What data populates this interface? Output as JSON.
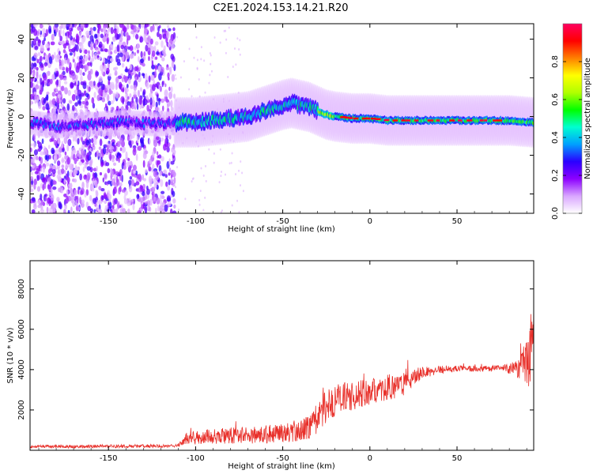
{
  "title": "C2E1.2024.153.14.21.R20",
  "chart_data": [
    {
      "type": "heatmap",
      "xlabel": "Height of straight line (km)",
      "ylabel": "Frequency (Hz)",
      "xlim": [
        -195,
        94
      ],
      "ylim": [
        -50,
        48
      ],
      "xticks": [
        -150,
        -100,
        -50,
        0,
        50
      ],
      "yticks": [
        -40,
        -20,
        0,
        20,
        40
      ],
      "ridge": {
        "x": [
          -195,
          -180,
          -160,
          -140,
          -120,
          -110,
          -100,
          -90,
          -80,
          -70,
          -60,
          -50,
          -45,
          -40,
          -35,
          -30,
          -25,
          -20,
          -10,
          0,
          10,
          20,
          40,
          60,
          80,
          94
        ],
        "y": [
          -3,
          -5,
          -4,
          -3,
          -4,
          -3,
          -3,
          -2,
          -1,
          0,
          3,
          6,
          7,
          6,
          5,
          3,
          1,
          0,
          -1,
          -1,
          -2,
          -2,
          -2,
          -2,
          -2,
          -3
        ]
      },
      "colorbar": {
        "label": "Normalized spectral amplitude",
        "range": [
          0,
          1
        ],
        "ticks": [
          0.0,
          0.2,
          0.4,
          0.6,
          0.8
        ],
        "colors": [
          "#ffffff",
          "#d9a6ff",
          "#8c00ff",
          "#2a00ff",
          "#00a0ff",
          "#00ffd0",
          "#00ff00",
          "#b0ff00",
          "#ffff00",
          "#ff8000",
          "#ff0000",
          "#ff0060"
        ]
      }
    },
    {
      "type": "line",
      "xlabel": "Height of straight line (km)",
      "ylabel": "SNR (10 * v/v)",
      "xlim": [
        -195,
        94
      ],
      "ylim": [
        0,
        9400
      ],
      "xticks": [
        -150,
        -100,
        -50,
        0,
        50
      ],
      "yticks": [
        2000,
        4000,
        6000,
        8000
      ],
      "color": "#e8302a",
      "envelope": {
        "x": [
          -195,
          -150,
          -110,
          -105,
          -90,
          -70,
          -50,
          -40,
          -35,
          -28,
          -25,
          -20,
          -10,
          0,
          10,
          20,
          25,
          30,
          40,
          50,
          60,
          70,
          80,
          85,
          90,
          94
        ],
        "y": [
          180,
          200,
          220,
          600,
          700,
          750,
          850,
          950,
          1200,
          1700,
          2200,
          2500,
          2700,
          2900,
          3100,
          3300,
          3600,
          3850,
          4000,
          4050,
          4050,
          4050,
          4050,
          4100,
          4400,
          5500
        ],
        "amp": [
          80,
          80,
          80,
          320,
          380,
          420,
          480,
          520,
          650,
          800,
          850,
          800,
          700,
          650,
          650,
          600,
          450,
          300,
          200,
          150,
          150,
          150,
          250,
          500,
          1300,
          2200
        ]
      }
    }
  ]
}
